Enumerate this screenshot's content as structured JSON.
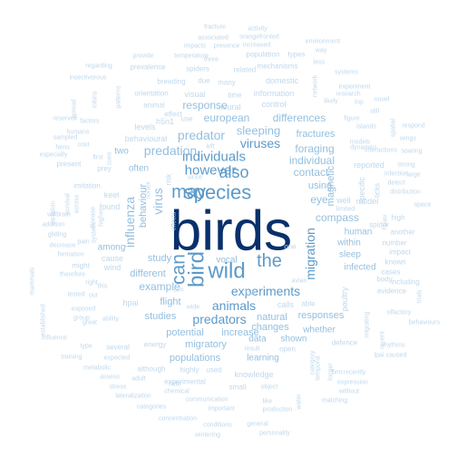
{
  "colors": {
    "background": "#ffffff",
    "tier1": "#08306b",
    "tier2": "#2d6da8",
    "tier3": "#5c9ac9",
    "tier4": "#94bfdf",
    "tier5": "#c0d8ec"
  },
  "words": [
    {
      "text": "birds",
      "freq": 100,
      "tier": 1
    },
    {
      "text": "species",
      "freq": 34,
      "tier": 3
    },
    {
      "text": "wild",
      "freq": 28,
      "tier": 3
    },
    {
      "text": "bird",
      "freq": 27,
      "tier": 3
    },
    {
      "text": "may",
      "freq": 24,
      "tier": 3
    },
    {
      "text": "also",
      "freq": 22,
      "tier": 3
    },
    {
      "text": "can",
      "freq": 22,
      "tier": 3
    },
    {
      "text": "the",
      "freq": 22,
      "tier": 3
    },
    {
      "text": "however",
      "freq": 18,
      "tier": 3
    },
    {
      "text": "individuals",
      "freq": 18,
      "tier": 3
    },
    {
      "text": "migration",
      "freq": 17,
      "tier": 3
    },
    {
      "text": "experiments",
      "freq": 15,
      "tier": 3
    },
    {
      "text": "animals",
      "freq": 15,
      "tier": 3
    },
    {
      "text": "viruses",
      "freq": 14,
      "tier": 3
    },
    {
      "text": "predators",
      "freq": 14,
      "tier": 3
    },
    {
      "text": "predation",
      "freq": 14,
      "tier": 4
    },
    {
      "text": "predator",
      "freq": 14,
      "tier": 4
    },
    {
      "text": "influenza",
      "freq": 13,
      "tier": 4
    },
    {
      "text": "virus",
      "freq": 13,
      "tier": 4
    },
    {
      "text": "sleeping",
      "freq": 13,
      "tier": 4
    },
    {
      "text": "individual",
      "freq": 12,
      "tier": 4
    },
    {
      "text": "european",
      "freq": 12,
      "tier": 4
    },
    {
      "text": "response",
      "freq": 12,
      "tier": 4
    },
    {
      "text": "differences",
      "freq": 12,
      "tier": 4
    },
    {
      "text": "foraging",
      "freq": 12,
      "tier": 4
    },
    {
      "text": "contact",
      "freq": 11,
      "tier": 4
    },
    {
      "text": "using",
      "freq": 11,
      "tier": 4
    },
    {
      "text": "eye",
      "freq": 11,
      "tier": 4
    },
    {
      "text": "compass",
      "freq": 11,
      "tier": 4
    },
    {
      "text": "study",
      "freq": 11,
      "tier": 4
    },
    {
      "text": "example",
      "freq": 11,
      "tier": 4
    },
    {
      "text": "different",
      "freq": 11,
      "tier": 4
    },
    {
      "text": "flight",
      "freq": 11,
      "tier": 4
    },
    {
      "text": "studies",
      "freq": 11,
      "tier": 4
    },
    {
      "text": "natural",
      "freq": 11,
      "tier": 4
    },
    {
      "text": "responses",
      "freq": 11,
      "tier": 4
    },
    {
      "text": "changes",
      "freq": 11,
      "tier": 4
    },
    {
      "text": "migratory",
      "freq": 10,
      "tier": 4
    },
    {
      "text": "populations",
      "freq": 10,
      "tier": 4
    },
    {
      "text": "increase",
      "freq": 10,
      "tier": 4
    },
    {
      "text": "potential",
      "freq": 10,
      "tier": 4
    },
    {
      "text": "magnetic",
      "freq": 10,
      "tier": 4
    },
    {
      "text": "behaviour",
      "freq": 10,
      "tier": 4
    },
    {
      "text": "fractures",
      "freq": 10,
      "tier": 4
    },
    {
      "text": "infected",
      "freq": 9,
      "tier": 4
    },
    {
      "text": "sleep",
      "freq": 9,
      "tier": 4
    },
    {
      "text": "within",
      "freq": 9,
      "tier": 4
    },
    {
      "text": "human",
      "freq": 9,
      "tier": 4
    },
    {
      "text": "among",
      "freq": 9,
      "tier": 4
    },
    {
      "text": "often",
      "freq": 9,
      "tier": 4
    },
    {
      "text": "two",
      "freq": 9,
      "tier": 4
    },
    {
      "text": "vocal",
      "freq": 9,
      "tier": 4
    },
    {
      "text": "whether",
      "freq": 9,
      "tier": 4
    },
    {
      "text": "data",
      "freq": 9,
      "tier": 4
    },
    {
      "text": "shown",
      "freq": 9,
      "tier": 4
    },
    {
      "text": "learning",
      "freq": 9,
      "tier": 4
    },
    {
      "text": "knowledge",
      "freq": 8,
      "tier": 5
    },
    {
      "text": "information",
      "freq": 8,
      "tier": 5
    },
    {
      "text": "neural",
      "freq": 8,
      "tier": 5
    },
    {
      "text": "visual",
      "freq": 8,
      "tier": 5
    },
    {
      "text": "levels",
      "freq": 8,
      "tier": 5
    },
    {
      "text": "behavioural",
      "freq": 8,
      "tier": 5
    },
    {
      "text": "poultry",
      "freq": 8,
      "tier": 5
    },
    {
      "text": "model",
      "freq": 8,
      "tier": 5
    },
    {
      "text": "specific",
      "freq": 8,
      "tier": 5
    },
    {
      "text": "reported",
      "freq": 8,
      "tier": 5
    },
    {
      "text": "cause",
      "freq": 8,
      "tier": 5
    },
    {
      "text": "found",
      "freq": 8,
      "tier": 5
    },
    {
      "text": "keel",
      "freq": 8,
      "tier": 5
    },
    {
      "text": "hpai",
      "freq": 8,
      "tier": 5
    },
    {
      "text": "wind",
      "freq": 8,
      "tier": 5
    },
    {
      "text": "highly",
      "freq": 8,
      "tier": 5
    },
    {
      "text": "used",
      "freq": 8,
      "tier": 5
    },
    {
      "text": "energy",
      "freq": 8,
      "tier": 5
    },
    {
      "text": "rate",
      "freq": 8,
      "tier": 5
    },
    {
      "text": "calls",
      "freq": 8,
      "tier": 5
    },
    {
      "text": "low",
      "freq": 8,
      "tier": 5
    },
    {
      "text": "able",
      "freq": 8,
      "tier": 5
    },
    {
      "text": "one",
      "freq": 8,
      "tier": 5
    },
    {
      "text": "well",
      "freq": 8,
      "tier": 5
    },
    {
      "text": "open",
      "freq": 8,
      "tier": 5
    },
    {
      "text": "defence",
      "freq": 7,
      "tier": 5
    },
    {
      "text": "cases",
      "freq": 7,
      "tier": 5
    },
    {
      "text": "known",
      "freq": 7,
      "tier": 5
    },
    {
      "text": "evidence",
      "freq": 7,
      "tier": 5
    },
    {
      "text": "body",
      "freq": 7,
      "tier": 5
    },
    {
      "text": "including",
      "freq": 7,
      "tier": 5
    },
    {
      "text": "impact",
      "freq": 7,
      "tier": 5
    },
    {
      "text": "number",
      "freq": 7,
      "tier": 5
    },
    {
      "text": "another",
      "freq": 7,
      "tier": 5
    },
    {
      "text": "spider",
      "freq": 7,
      "tier": 5
    },
    {
      "text": "high",
      "freq": 7,
      "tier": 5
    },
    {
      "text": "ticks",
      "freq": 7,
      "tier": 5
    },
    {
      "text": "limited",
      "freq": 7,
      "tier": 5
    },
    {
      "text": "small",
      "freq": 7,
      "tier": 5
    },
    {
      "text": "hpaiv",
      "freq": 7,
      "tier": 5
    },
    {
      "text": "detect",
      "freq": 7,
      "tier": 5
    },
    {
      "text": "distribution",
      "freq": 7,
      "tier": 5
    },
    {
      "text": "infection",
      "freq": 7,
      "tier": 5
    },
    {
      "text": "large",
      "freq": 7,
      "tier": 5
    },
    {
      "text": "strong",
      "freq": 7,
      "tier": 5
    },
    {
      "text": "space",
      "freq": 7,
      "tier": 5
    },
    {
      "text": "interactions",
      "freq": 7,
      "tier": 5
    },
    {
      "text": "dynamics",
      "freq": 7,
      "tier": 5
    },
    {
      "text": "islands",
      "freq": 7,
      "tier": 5
    },
    {
      "text": "models",
      "freq": 7,
      "tier": 5
    },
    {
      "text": "wings",
      "freq": 7,
      "tier": 5
    },
    {
      "text": "soaring",
      "freq": 7,
      "tier": 5
    },
    {
      "text": "spatial",
      "freq": 7,
      "tier": 5
    },
    {
      "text": "respond",
      "freq": 7,
      "tier": 5
    },
    {
      "text": "figure",
      "freq": 7,
      "tier": 5
    },
    {
      "text": "likely",
      "freq": 7,
      "tier": 5
    },
    {
      "text": "top",
      "freq": 7,
      "tier": 5
    },
    {
      "text": "novel",
      "freq": 7,
      "tier": 5
    },
    {
      "text": "research",
      "freq": 7,
      "tier": 5
    },
    {
      "text": "experiment",
      "freq": 7,
      "tier": 5
    },
    {
      "text": "still",
      "freq": 7,
      "tier": 5
    },
    {
      "text": "systems",
      "freq": 7,
      "tier": 5
    },
    {
      "text": "network",
      "freq": 7,
      "tier": 5
    },
    {
      "text": "less",
      "freq": 7,
      "tier": 5
    },
    {
      "text": "way",
      "freq": 7,
      "tier": 5
    },
    {
      "text": "environment",
      "freq": 7,
      "tier": 5
    },
    {
      "text": "mechanisms",
      "freq": 7,
      "tier": 5
    },
    {
      "text": "population",
      "freq": 7,
      "tier": 5
    },
    {
      "text": "types",
      "freq": 7,
      "tier": 5
    },
    {
      "text": "control",
      "freq": 7,
      "tier": 5
    },
    {
      "text": "domestic",
      "freq": 7,
      "tier": 5
    },
    {
      "text": "related",
      "freq": 7,
      "tier": 5
    },
    {
      "text": "spiders",
      "freq": 7,
      "tier": 5
    },
    {
      "text": "three",
      "freq": 7,
      "tier": 5
    },
    {
      "text": "increased",
      "freq": 7,
      "tier": 5
    },
    {
      "text": "orangefronted",
      "freq": 7,
      "tier": 5
    },
    {
      "text": "activity",
      "freq": 7,
      "tier": 5
    },
    {
      "text": "fracture",
      "freq": 7,
      "tier": 5
    },
    {
      "text": "associated",
      "freq": 7,
      "tier": 5
    },
    {
      "text": "impacts",
      "freq": 7,
      "tier": 5
    },
    {
      "text": "presence",
      "freq": 7,
      "tier": 5
    },
    {
      "text": "provide",
      "freq": 7,
      "tier": 5
    },
    {
      "text": "temperature",
      "freq": 7,
      "tier": 5
    },
    {
      "text": "regarding",
      "freq": 7,
      "tier": 5
    },
    {
      "text": "prevalence",
      "freq": 7,
      "tier": 5
    },
    {
      "text": "insectivorous",
      "freq": 7,
      "tier": 5
    },
    {
      "text": "breeding",
      "freq": 7,
      "tier": 5
    },
    {
      "text": "due",
      "freq": 7,
      "tier": 5
    },
    {
      "text": "many",
      "freq": 7,
      "tier": 5
    },
    {
      "text": "time",
      "freq": 7,
      "tier": 5
    },
    {
      "text": "orientation",
      "freq": 7,
      "tier": 5
    },
    {
      "text": "animal",
      "freq": 7,
      "tier": 5
    },
    {
      "text": "effect",
      "freq": 7,
      "tier": 5
    },
    {
      "text": "h5n1",
      "freq": 7,
      "tier": 5
    },
    {
      "text": "use",
      "freq": 7,
      "tier": 5
    },
    {
      "text": "robins",
      "freq": 7,
      "tier": 5
    },
    {
      "text": "patterns",
      "freq": 7,
      "tier": 5
    },
    {
      "text": "spread",
      "freq": 7,
      "tier": 5
    },
    {
      "text": "reservoir",
      "freq": 7,
      "tier": 5
    },
    {
      "text": "humans",
      "freq": 7,
      "tier": 5
    },
    {
      "text": "factors",
      "freq": 7,
      "tier": 5
    },
    {
      "text": "sampled",
      "freq": 7,
      "tier": 5
    },
    {
      "text": "hens",
      "freq": 7,
      "tier": 5
    },
    {
      "text": "cost",
      "freq": 7,
      "tier": 5
    },
    {
      "text": "especially",
      "freq": 7,
      "tier": 5
    },
    {
      "text": "present",
      "freq": 7,
      "tier": 5
    },
    {
      "text": "first",
      "freq": 7,
      "tier": 5
    },
    {
      "text": "prey",
      "freq": 7,
      "tier": 5
    },
    {
      "text": "cues",
      "freq": 7,
      "tier": 5
    },
    {
      "text": "risk",
      "freq": 7,
      "tier": 5
    },
    {
      "text": "since",
      "freq": 7,
      "tier": 5
    },
    {
      "text": "left",
      "freq": 7,
      "tier": 5
    },
    {
      "text": "cortex",
      "freq": 7,
      "tier": 5
    },
    {
      "text": "imitation",
      "freq": 7,
      "tier": 5
    },
    {
      "text": "variation",
      "freq": 7,
      "tier": 5
    },
    {
      "text": "survival",
      "freq": 7,
      "tier": 5
    },
    {
      "text": "will",
      "freq": 7,
      "tier": 5
    },
    {
      "text": "brain",
      "freq": 7,
      "tier": 5
    },
    {
      "text": "addition",
      "freq": 7,
      "tier": 5
    },
    {
      "text": "gliding",
      "freq": 7,
      "tier": 5
    },
    {
      "text": "across",
      "freq": 7,
      "tier": 5
    },
    {
      "text": "disease",
      "freq": 7,
      "tier": 5
    },
    {
      "text": "system",
      "freq": 7,
      "tier": 5
    },
    {
      "text": "higher",
      "freq": 7,
      "tier": 5
    },
    {
      "text": "effects",
      "freq": 7,
      "tier": 5
    },
    {
      "text": "decrease",
      "freq": 7,
      "tier": 5
    },
    {
      "text": "pain",
      "freq": 7,
      "tier": 5
    },
    {
      "text": "formation",
      "freq": 7,
      "tier": 5
    },
    {
      "text": "might",
      "freq": 7,
      "tier": 5
    },
    {
      "text": "therefore",
      "freq": 7,
      "tier": 5
    },
    {
      "text": "right",
      "freq": 7,
      "tier": 5
    },
    {
      "text": "tested",
      "freq": 7,
      "tier": 5
    },
    {
      "text": "our",
      "freq": 7,
      "tier": 5
    },
    {
      "text": "this",
      "freq": 7,
      "tier": 5
    },
    {
      "text": "mammals",
      "freq": 7,
      "tier": 5
    },
    {
      "text": "established",
      "freq": 7,
      "tier": 5
    },
    {
      "text": "exposed",
      "freq": 7,
      "tier": 5
    },
    {
      "text": "great",
      "freq": 7,
      "tier": 5
    },
    {
      "text": "group",
      "freq": 7,
      "tier": 5
    },
    {
      "text": "ability",
      "freq": 7,
      "tier": 5
    },
    {
      "text": "influence",
      "freq": 7,
      "tier": 5
    },
    {
      "text": "type",
      "freq": 7,
      "tier": 5
    },
    {
      "text": "several",
      "freq": 7,
      "tier": 5
    },
    {
      "text": "training",
      "freq": 7,
      "tier": 5
    },
    {
      "text": "expected",
      "freq": 7,
      "tier": 5
    },
    {
      "text": "metabolic",
      "freq": 7,
      "tier": 5
    },
    {
      "text": "although",
      "freq": 7,
      "tier": 5
    },
    {
      "text": "adult",
      "freq": 7,
      "tier": 5
    },
    {
      "text": "experimental",
      "freq": 7,
      "tier": 5
    },
    {
      "text": "assess",
      "freq": 7,
      "tier": 5
    },
    {
      "text": "stress",
      "freq": 7,
      "tier": 5
    },
    {
      "text": "lateralization",
      "freq": 7,
      "tier": 5
    },
    {
      "text": "chemical",
      "freq": 7,
      "tier": 5
    },
    {
      "text": "categories",
      "freq": 7,
      "tier": 5
    },
    {
      "text": "communication",
      "freq": 7,
      "tier": 5
    },
    {
      "text": "important",
      "freq": 7,
      "tier": 5
    },
    {
      "text": "concentration",
      "freq": 7,
      "tier": 5
    },
    {
      "text": "conditions",
      "freq": 7,
      "tier": 5
    },
    {
      "text": "wintering",
      "freq": 7,
      "tier": 5
    },
    {
      "text": "general",
      "freq": 7,
      "tier": 5
    },
    {
      "text": "personality",
      "freq": 7,
      "tier": 5
    },
    {
      "text": "production",
      "freq": 7,
      "tier": 5
    },
    {
      "text": "like",
      "freq": 7,
      "tier": 5
    },
    {
      "text": "object",
      "freq": 7,
      "tier": 5
    },
    {
      "text": "water",
      "freq": 7,
      "tier": 5
    },
    {
      "text": "result",
      "freq": 7,
      "tier": 5
    },
    {
      "text": "temporal",
      "freq": 7,
      "tier": 5
    },
    {
      "text": "category",
      "freq": 7,
      "tier": 5
    },
    {
      "text": "longer",
      "freq": 7,
      "tier": 5
    },
    {
      "text": "bmr",
      "freq": 7,
      "tier": 5
    },
    {
      "text": "recently",
      "freq": 7,
      "tier": 5
    },
    {
      "text": "expression",
      "freq": 7,
      "tier": 5
    },
    {
      "text": "without",
      "freq": 7,
      "tier": 5
    },
    {
      "text": "matching",
      "freq": 7,
      "tier": 5
    },
    {
      "text": "migrating",
      "freq": 7,
      "tier": 5
    },
    {
      "text": "recent",
      "freq": 7,
      "tier": 5
    },
    {
      "text": "lpai",
      "freq": 7,
      "tier": 5
    },
    {
      "text": "caused",
      "freq": 7,
      "tier": 5
    },
    {
      "text": "rhythms",
      "freq": 7,
      "tier": 5
    },
    {
      "text": "olfactory",
      "freq": 7,
      "tier": 5
    },
    {
      "text": "behaviours",
      "freq": 7,
      "tier": 5
    },
    {
      "text": "trials",
      "freq": 7,
      "tier": 5
    },
    {
      "text": "wide",
      "freq": 7,
      "tier": 5
    },
    {
      "text": "avian",
      "freq": 7,
      "tier": 5
    },
    {
      "text": "aim",
      "freq": 7,
      "tier": 5
    }
  ]
}
